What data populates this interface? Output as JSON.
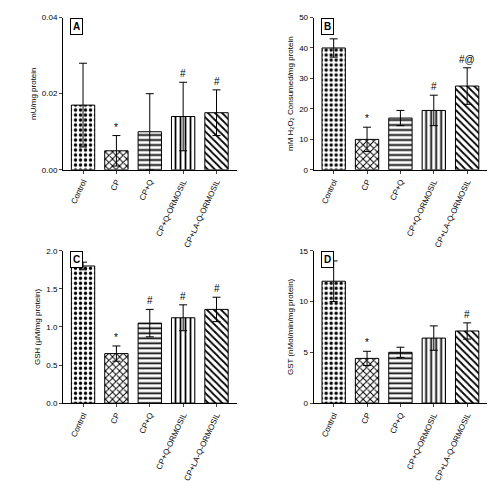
{
  "chart_data": [
    {
      "type": "bar",
      "panel": "A",
      "y_label": "mU/mg protein",
      "categories": [
        "Control",
        "CP",
        "CP+Q",
        "CP+Q-ORMOSIL",
        "CP+LA-Q-ORMOSIL"
      ],
      "values": [
        0.017,
        0.005,
        0.01,
        0.014,
        0.015
      ],
      "errors": [
        0.011,
        0.004,
        0.01,
        0.009,
        0.006
      ],
      "significance": [
        null,
        "*",
        null,
        "#",
        "#"
      ],
      "ylim": [
        0,
        0.04
      ],
      "yticks": [
        {
          "value": 0,
          "label": "0.00"
        },
        {
          "value": 0.02,
          "label": "0.02"
        },
        {
          "value": 0.04,
          "label": "0.04"
        }
      ],
      "grid": false
    },
    {
      "type": "bar",
      "panel": "B",
      "y_label": "mM H₂O₂ Consumed/mg protein",
      "categories": [
        "Control",
        "CP",
        "CP+Q",
        "CP+Q-ORMOSIL",
        "CP+LA-Q-ORMOSIL"
      ],
      "values": [
        40,
        10,
        17,
        19.5,
        27.5
      ],
      "errors": [
        3,
        4,
        2.5,
        5,
        6
      ],
      "significance": [
        null,
        "*",
        null,
        "#",
        "#@"
      ],
      "ylim": [
        0,
        50
      ],
      "yticks": [
        0,
        10,
        20,
        30,
        40,
        50
      ],
      "grid": false
    },
    {
      "type": "bar",
      "panel": "C",
      "y_label": "GSH (µM/mg protein)",
      "categories": [
        "Control",
        "CP",
        "CP+Q",
        "CP+Q-ORMOSIL",
        "CP+LA-Q-ORMOSIL"
      ],
      "values": [
        1.8,
        0.65,
        1.05,
        1.12,
        1.23
      ],
      "errors": [
        0.05,
        0.1,
        0.18,
        0.17,
        0.16
      ],
      "significance": [
        null,
        "*",
        "#",
        "#",
        "#"
      ],
      "ylim": [
        0,
        2.0
      ],
      "yticks": [
        {
          "value": 0,
          "label": "0.0"
        },
        0.5,
        {
          "value": 1,
          "label": "1.0"
        },
        1.5,
        {
          "value": 2,
          "label": "2.0"
        }
      ],
      "grid": false
    },
    {
      "type": "bar",
      "panel": "D",
      "y_label": "GST (nMol/min/mg protein)",
      "categories": [
        "Control",
        "CP",
        "CP+Q",
        "CP+Q-ORMOSIL",
        "CP+LA-Q-ORMOSIL"
      ],
      "values": [
        12,
        4.4,
        5,
        6.4,
        7.1
      ],
      "errors": [
        2,
        0.7,
        0.5,
        1.2,
        0.8
      ],
      "significance": [
        null,
        "*",
        null,
        null,
        "#"
      ],
      "ylim": [
        0,
        15
      ],
      "yticks": [
        0,
        5,
        10,
        15
      ],
      "grid": false
    }
  ]
}
